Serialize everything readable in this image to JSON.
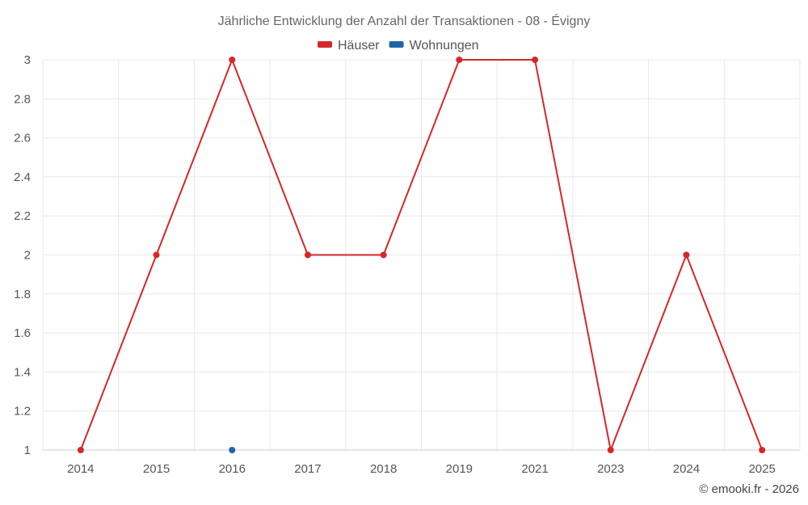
{
  "chart_data": {
    "type": "line",
    "title": "Jährliche Entwicklung der Anzahl der Transaktionen - 08 - Évigny",
    "xlabel": "",
    "ylabel": "",
    "categories": [
      "2014",
      "2015",
      "2016",
      "2017",
      "2018",
      "2019",
      "2021",
      "2023",
      "2024",
      "2025"
    ],
    "ylim": [
      1,
      3
    ],
    "yticks": [
      "1",
      "1.2",
      "1.4",
      "1.6",
      "1.8",
      "2",
      "2.2",
      "2.4",
      "2.6",
      "2.8",
      "3"
    ],
    "grid": true,
    "legend_position": "top",
    "series": [
      {
        "name": "Häuser",
        "color": "#d62728",
        "values": [
          1,
          2,
          3,
          2,
          2,
          3,
          3,
          1,
          2,
          1
        ]
      },
      {
        "name": "Wohnungen",
        "color": "#1f66a8",
        "values": [
          null,
          null,
          1,
          null,
          null,
          null,
          null,
          null,
          null,
          null
        ]
      }
    ]
  },
  "credit": "© emooki.fr - 2026"
}
